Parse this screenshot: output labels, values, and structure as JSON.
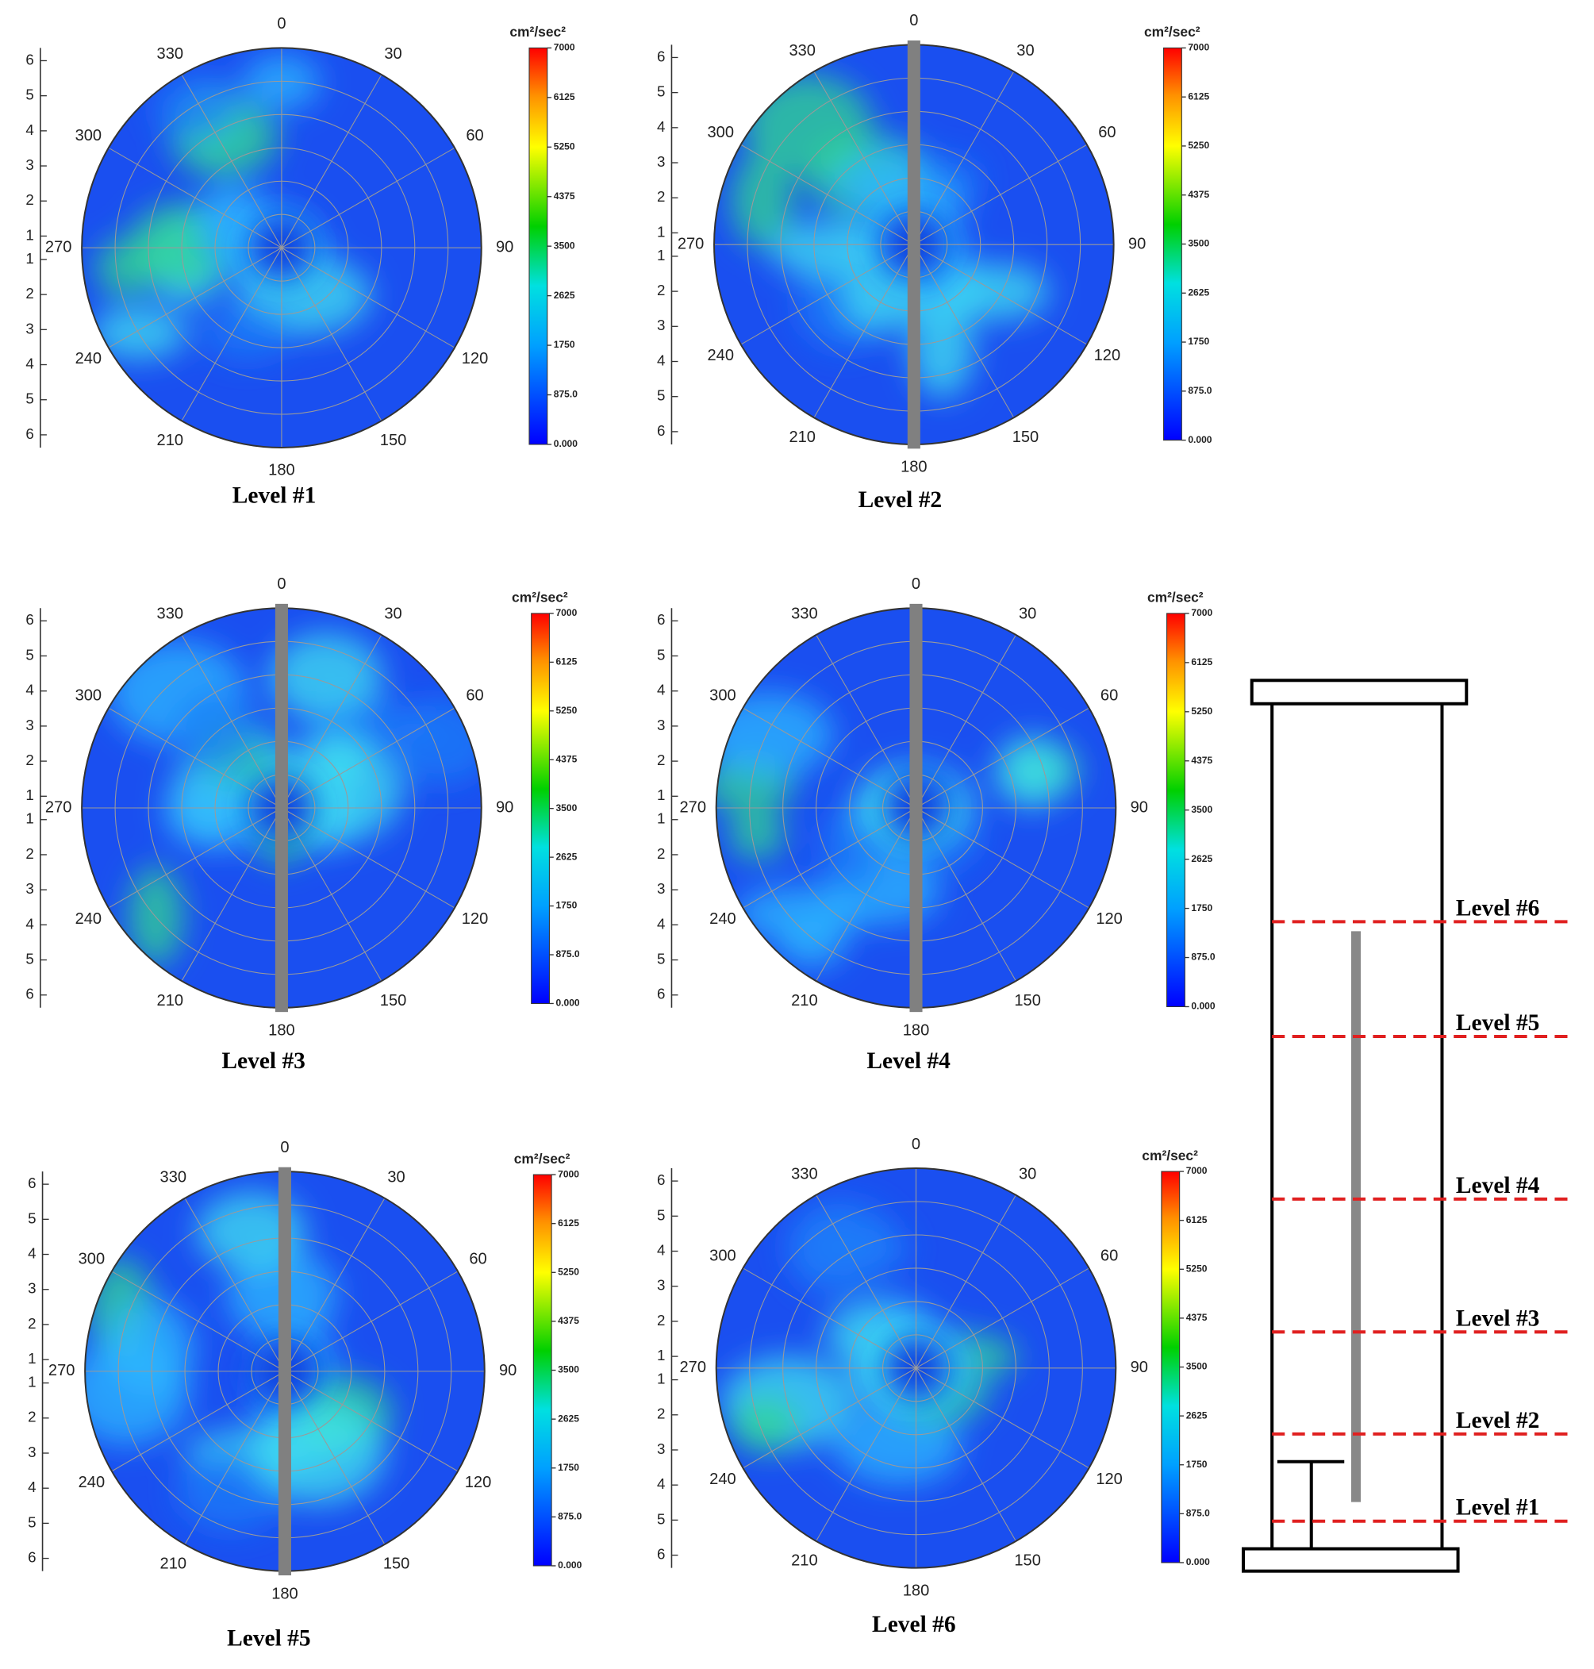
{
  "chart_data": [
    {
      "type": "polar-contour",
      "label": "Level #1",
      "unit": "cm²/sec²",
      "rod": false,
      "angle_labels": [
        0,
        30,
        60,
        90,
        120,
        150,
        180,
        210,
        240,
        270,
        300,
        330
      ],
      "radial_ticks": [
        1,
        2,
        3,
        4,
        5,
        6
      ],
      "clim": [
        0,
        7000
      ],
      "colorbar_ticks": [
        7000,
        6125,
        5250,
        4375,
        3500,
        2625,
        1750,
        {
          "value": 875,
          "label": "875.0"
        },
        {
          "value": 0,
          "label": "0.000"
        }
      ]
    },
    {
      "type": "polar-contour",
      "label": "Level #2",
      "unit": "cm²/sec²",
      "rod": true,
      "angle_labels": [
        0,
        30,
        60,
        90,
        120,
        150,
        180,
        210,
        240,
        270,
        300,
        330
      ],
      "radial_ticks": [
        1,
        2,
        3,
        4,
        5,
        6
      ],
      "clim": [
        0,
        7000
      ],
      "colorbar_ticks": [
        7000,
        6125,
        5250,
        4375,
        3500,
        2625,
        1750,
        {
          "value": 875,
          "label": "875.0"
        },
        {
          "value": 0,
          "label": "0.000"
        }
      ]
    },
    {
      "type": "polar-contour",
      "label": "Level #3",
      "unit": "cm²/sec²",
      "rod": true,
      "angle_labels": [
        0,
        30,
        60,
        90,
        120,
        150,
        180,
        210,
        240,
        270,
        300,
        330
      ],
      "radial_ticks": [
        1,
        2,
        3,
        4,
        5,
        6
      ],
      "clim": [
        0,
        7000
      ],
      "colorbar_ticks": [
        7000,
        6125,
        5250,
        4375,
        3500,
        2625,
        1750,
        {
          "value": 875,
          "label": "875.0"
        },
        {
          "value": 0,
          "label": "0.000"
        }
      ]
    },
    {
      "type": "polar-contour",
      "label": "Level #4",
      "unit": "cm²/sec²",
      "rod": true,
      "angle_labels": [
        0,
        30,
        60,
        90,
        120,
        150,
        180,
        210,
        240,
        270,
        300,
        330
      ],
      "radial_ticks": [
        1,
        2,
        3,
        4,
        5,
        6
      ],
      "clim": [
        0,
        7000
      ],
      "colorbar_ticks": [
        7000,
        6125,
        5250,
        4375,
        3500,
        2625,
        1750,
        {
          "value": 875,
          "label": "875.0"
        },
        {
          "value": 0,
          "label": "0.000"
        }
      ]
    },
    {
      "type": "polar-contour",
      "label": "Level #5",
      "unit": "cm²/sec²",
      "rod": true,
      "angle_labels": [
        0,
        30,
        60,
        90,
        120,
        150,
        180,
        210,
        240,
        270,
        300,
        330
      ],
      "radial_ticks": [
        1,
        2,
        3,
        4,
        5,
        6
      ],
      "clim": [
        0,
        7000
      ],
      "colorbar_ticks": [
        7000,
        6125,
        5250,
        4375,
        3500,
        2625,
        1750,
        {
          "value": 875,
          "label": "875.0"
        },
        {
          "value": 0,
          "label": "0.000"
        }
      ]
    },
    {
      "type": "polar-contour",
      "label": "Level #6",
      "unit": "cm²/sec²",
      "rod": false,
      "angle_labels": [
        0,
        30,
        60,
        90,
        120,
        150,
        180,
        210,
        240,
        270,
        300,
        330
      ],
      "radial_ticks": [
        1,
        2,
        3,
        4,
        5,
        6
      ],
      "clim": [
        0,
        7000
      ],
      "colorbar_ticks": [
        7000,
        6125,
        5250,
        4375,
        3500,
        2625,
        1750,
        {
          "value": 875,
          "label": "875.0"
        },
        {
          "value": 0,
          "label": "0.000"
        }
      ]
    }
  ],
  "schematic": {
    "levels": [
      "Level #6",
      "Level #5",
      "Level #4",
      "Level #3",
      "Level #2",
      "Level #1"
    ]
  }
}
